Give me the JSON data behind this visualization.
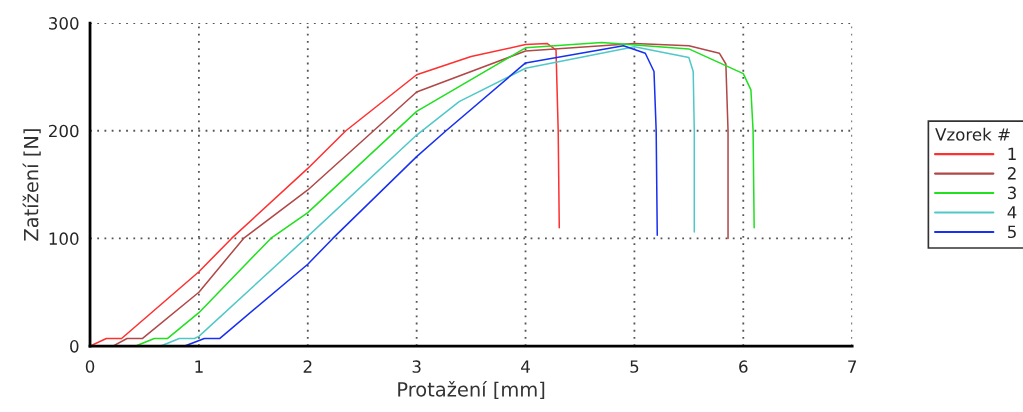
{
  "chart_data": {
    "type": "line",
    "xlabel": "Protažení [mm]",
    "ylabel": "Zatížení [N]",
    "legend_title": "Vzorek #",
    "xlim": [
      0,
      7
    ],
    "ylim": [
      0,
      300
    ],
    "xticks": [
      0,
      1,
      2,
      3,
      4,
      5,
      6,
      7
    ],
    "yticks": [
      0,
      100,
      200,
      300
    ],
    "grid": true,
    "legend": "right",
    "marker": "none",
    "line_style": "solid",
    "series": [
      {
        "name": "1",
        "color": "#ff3030",
        "x": [
          0,
          0.15,
          0.29,
          1,
          1.3,
          2,
          2.35,
          3,
          3.5,
          4,
          4.2,
          4.28,
          4.3,
          4.31
        ],
        "values": [
          0,
          7,
          7,
          69,
          100,
          165,
          200,
          252,
          269,
          280,
          281,
          275,
          200,
          110
        ]
      },
      {
        "name": "2",
        "color": "#b04848",
        "x": [
          0.21,
          0.34,
          0.48,
          1,
          1.41,
          2,
          3,
          4,
          5,
          5.5,
          5.78,
          5.84,
          5.86,
          5.86
        ],
        "values": [
          0,
          7,
          7,
          50,
          100,
          145,
          236,
          274,
          281,
          279,
          272,
          262,
          200,
          100
        ]
      },
      {
        "name": "3",
        "color": "#20e020",
        "x": [
          0.42,
          0.59,
          0.71,
          1,
          1.66,
          2,
          3,
          4,
          4.7,
          5.5,
          6,
          6.07,
          6.09,
          6.1
        ],
        "values": [
          0,
          7,
          7,
          31,
          100,
          124,
          218,
          277,
          282,
          276,
          253,
          238,
          200,
          110
        ]
      },
      {
        "name": "4",
        "color": "#50c8c8",
        "x": [
          0.65,
          0.82,
          0.96,
          1,
          1.98,
          3,
          3.39,
          4,
          5,
          5.5,
          5.54,
          5.55,
          5.55
        ],
        "values": [
          0,
          7,
          7,
          9,
          100,
          196,
          227,
          258,
          278,
          268,
          255,
          200,
          106
        ]
      },
      {
        "name": "5",
        "color": "#1830f0",
        "x": [
          0.87,
          1.05,
          1.19,
          2,
          2.23,
          3,
          3.27,
          4,
          4.9,
          5.1,
          5.18,
          5.2,
          5.21
        ],
        "values": [
          0,
          7,
          7,
          76,
          100,
          176,
          200,
          263,
          279,
          272,
          255,
          200,
          103
        ]
      }
    ]
  }
}
